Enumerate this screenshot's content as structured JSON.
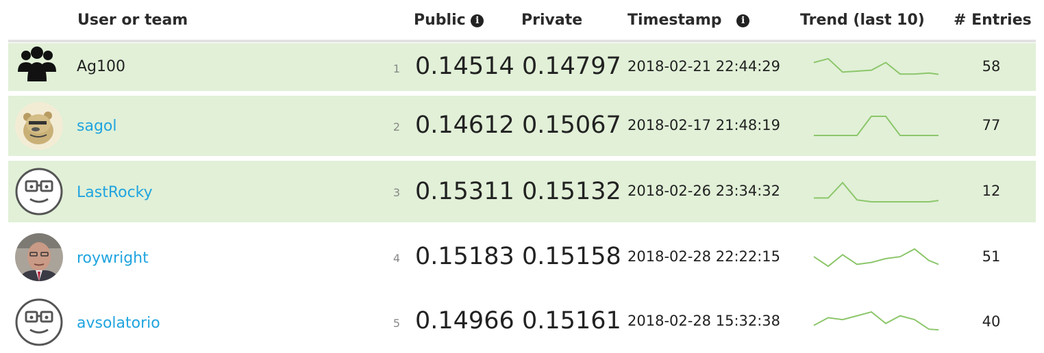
{
  "header": {
    "user_or_team": "User or team",
    "public": "Public",
    "private": "Private",
    "timestamp": "Timestamp",
    "trend": "Trend (last 10)",
    "entries": "# Entries",
    "info_icon": "i"
  },
  "colors": {
    "highlight_row": "#e1f0d7",
    "link": "#20a4df",
    "trend_line": "#8cc66a"
  },
  "rows": [
    {
      "rank": "1",
      "name": "Ag100",
      "name_is_link": false,
      "avatar": "team-icon",
      "highlighted": true,
      "public": "0.14514",
      "private": "0.14797",
      "timestamp": "2018-02-21 22:44:29",
      "entries": "58",
      "trend": [
        0.7,
        0.9,
        0.2,
        0.25,
        0.3,
        0.7,
        0.1,
        0.1,
        0.15,
        0.05
      ]
    },
    {
      "rank": "2",
      "name": "sagol",
      "name_is_link": true,
      "avatar": "bear-avatar",
      "highlighted": true,
      "public": "0.14612",
      "private": "0.15067",
      "timestamp": "2018-02-17 21:48:19",
      "entries": "77",
      "trend": [
        0,
        0,
        0,
        0,
        1,
        1,
        0,
        0,
        0,
        0
      ]
    },
    {
      "rank": "3",
      "name": "LastRocky",
      "name_is_link": true,
      "avatar": "default-face-avatar",
      "highlighted": true,
      "public": "0.15311",
      "private": "0.15132",
      "timestamp": "2018-02-26 23:34:32",
      "entries": "12",
      "trend": [
        0.2,
        0.2,
        1,
        0.1,
        0,
        0,
        0,
        0,
        0,
        0.1
      ]
    },
    {
      "rank": "4",
      "name": "roywright",
      "name_is_link": true,
      "avatar": "photo-avatar",
      "highlighted": false,
      "public": "0.15183",
      "private": "0.15158",
      "timestamp": "2018-02-28 22:22:15",
      "entries": "51",
      "trend": [
        0.6,
        0.1,
        0.7,
        0.2,
        0.3,
        0.5,
        0.6,
        1,
        0.4,
        0.1
      ]
    },
    {
      "rank": "5",
      "name": "avsolatorio",
      "name_is_link": true,
      "avatar": "default-face-avatar",
      "highlighted": false,
      "public": "0.14966",
      "private": "0.15161",
      "timestamp": "2018-02-28 15:32:38",
      "entries": "40",
      "trend": [
        0.3,
        0.7,
        0.6,
        0.8,
        1,
        0.4,
        0.8,
        0.6,
        0.1,
        0.05
      ]
    }
  ]
}
